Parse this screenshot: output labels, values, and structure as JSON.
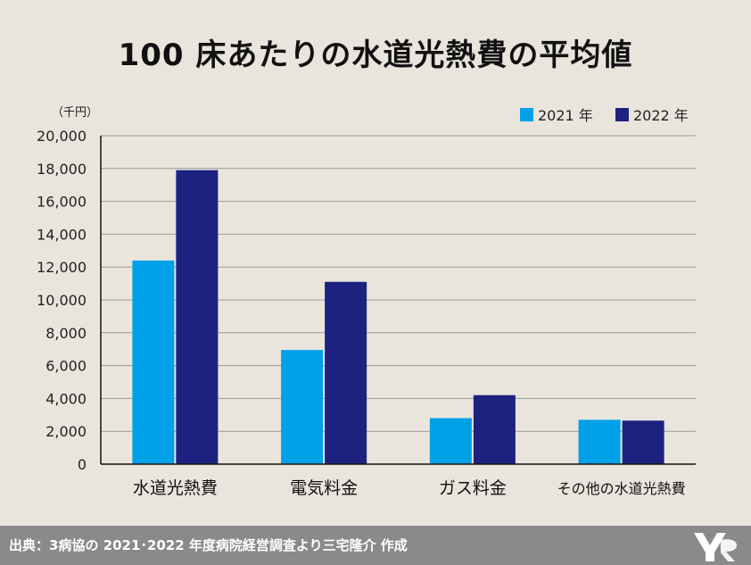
{
  "title": "100 床あたりの水道光熱費の平均値",
  "source": "出典：3病協の 2021･2022 年度病院経営調査より三宅隆介 作成",
  "logo": "logo-mark",
  "colors": {
    "background": "#e9e5dd",
    "footer": "#8a8a8a",
    "series_2021": "#00a0e9",
    "series_2022": "#1d2281",
    "grid": "#9a9a9a"
  },
  "chart_data": {
    "type": "bar",
    "title": "100 床あたりの水道光熱費の平均値",
    "unit_label": "（千円）",
    "categories": [
      "水道光熱費",
      "電気料金",
      "ガス料金",
      "その他の水道光熱費"
    ],
    "series": [
      {
        "name": "2021 年",
        "color": "#00a0e9",
        "values": [
          12400,
          6950,
          2800,
          2700
        ]
      },
      {
        "name": "2022 年",
        "color": "#1d2281",
        "values": [
          17900,
          11100,
          4200,
          2650
        ]
      }
    ],
    "ylim": [
      0,
      20000
    ],
    "yticks": [
      0,
      2000,
      4000,
      6000,
      8000,
      10000,
      12000,
      14000,
      16000,
      18000,
      20000
    ],
    "ytick_labels": [
      "0",
      "2,000",
      "4,000",
      "6,000",
      "8,000",
      "10,000",
      "12,000",
      "14,000",
      "16,000",
      "18,000",
      "20,000"
    ],
    "grid": true,
    "legend_position": "top-right"
  }
}
